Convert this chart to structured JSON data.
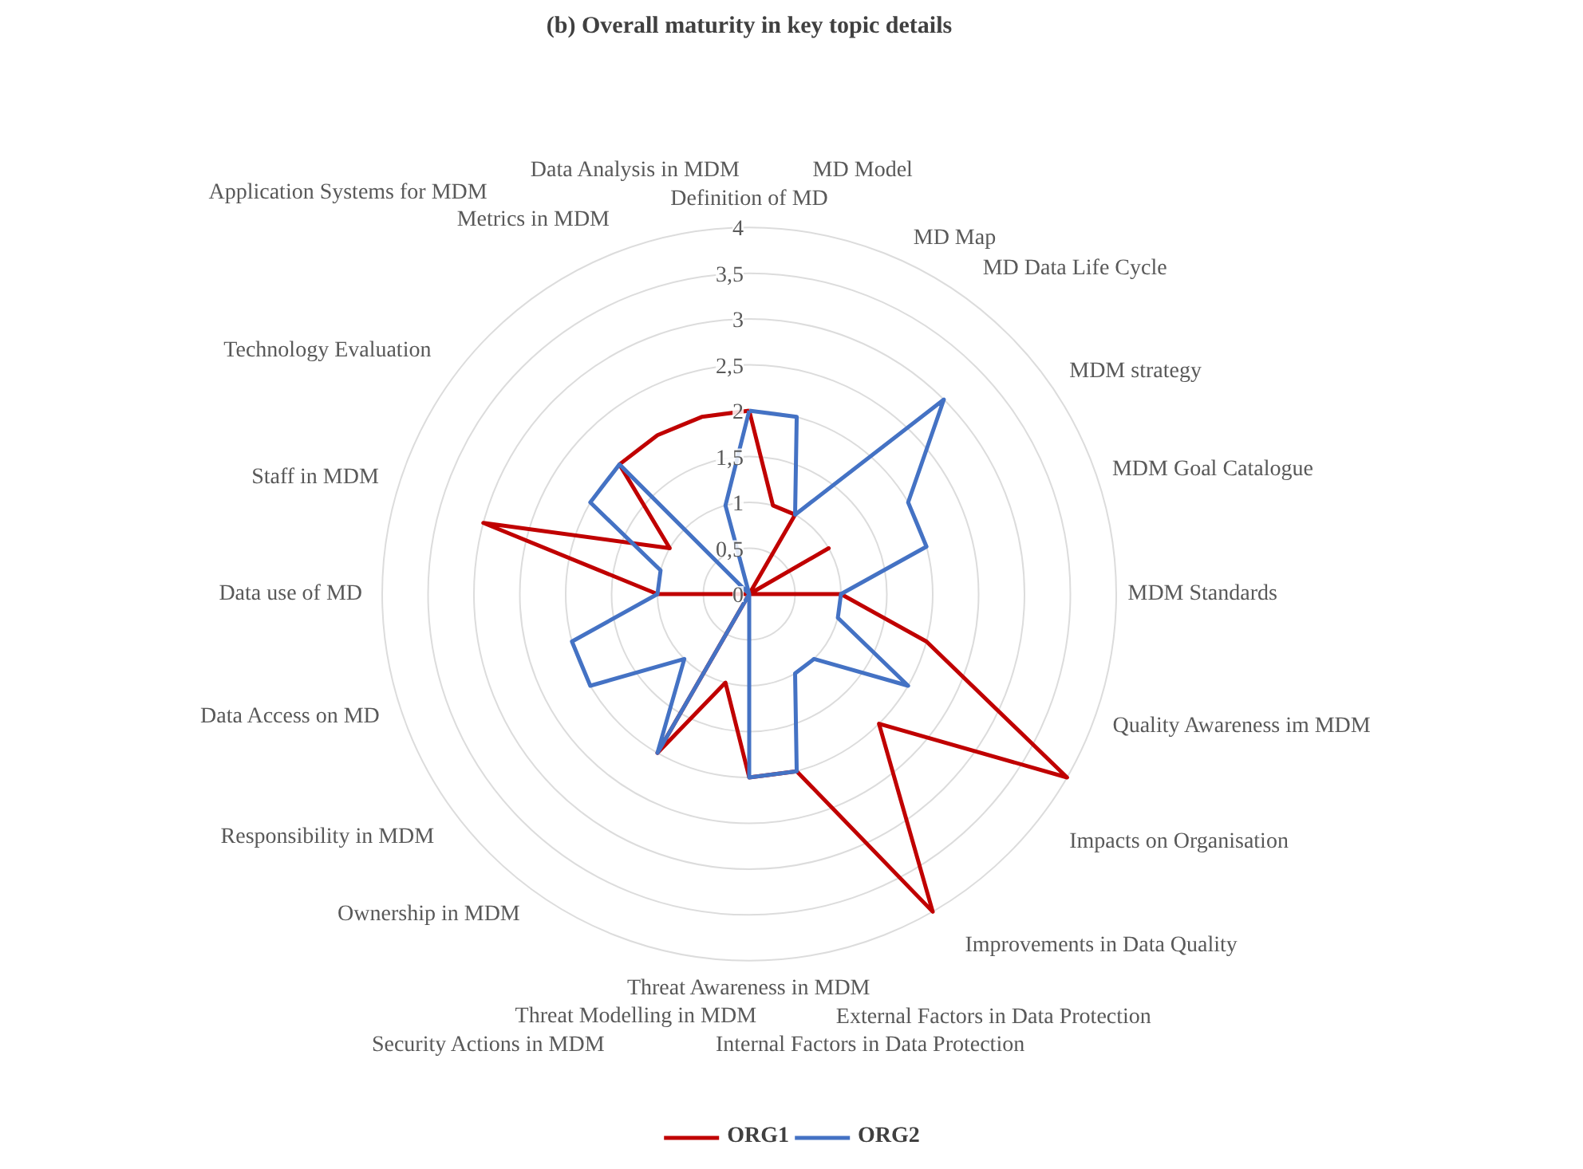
{
  "chart_data": {
    "type": "radar",
    "title": "(b) Overall maturity in key topic details",
    "categories": [
      "Definition of MD",
      "MD Model",
      "MD Map",
      "MD Data Life Cycle",
      "MDM strategy",
      "MDM Goal Catalogue",
      "MDM Standards",
      "Quality Awareness im MDM",
      "Impacts on Organisation",
      "Improvements in Data Quality",
      "External Factors in Data Protection",
      "Internal Factors in Data Protection",
      "Threat Awareness in MDM",
      "Threat Modelling in MDM",
      "Security Actions in MDM",
      "Ownership in MDM",
      "Responsibility in MDM",
      "Data Access on MD",
      "Data use of MD",
      "Staff in MDM",
      "Technology Evaluation",
      "Application Systems for MDM",
      "Metrics in MDM",
      "Data Analysis in MDM"
    ],
    "series": [
      {
        "name": "ORG1",
        "color": "#c00000",
        "values": [
          2,
          1,
          1,
          0,
          1,
          0,
          1,
          2,
          4,
          2,
          4,
          2,
          2,
          1,
          2,
          0,
          0,
          0,
          1,
          3,
          1,
          2,
          2,
          2
        ]
      },
      {
        "name": "ORG2",
        "color": "#4472c4",
        "values": [
          2,
          2,
          1,
          3,
          2,
          2,
          1,
          1,
          2,
          1,
          1,
          2,
          2,
          0,
          2,
          1,
          2,
          2,
          1,
          1,
          2,
          2,
          0,
          1
        ]
      }
    ],
    "ylim": [
      0,
      4
    ],
    "yticks": [
      0,
      {
        "value": 0.5,
        "label": "0,5"
      },
      1,
      {
        "value": 1.5,
        "label": "1,5"
      },
      2,
      {
        "value": 2.5,
        "label": "2,5"
      },
      3,
      {
        "value": 3.5,
        "label": "3,5"
      },
      4
    ],
    "grid": true,
    "legend": "bottom"
  }
}
